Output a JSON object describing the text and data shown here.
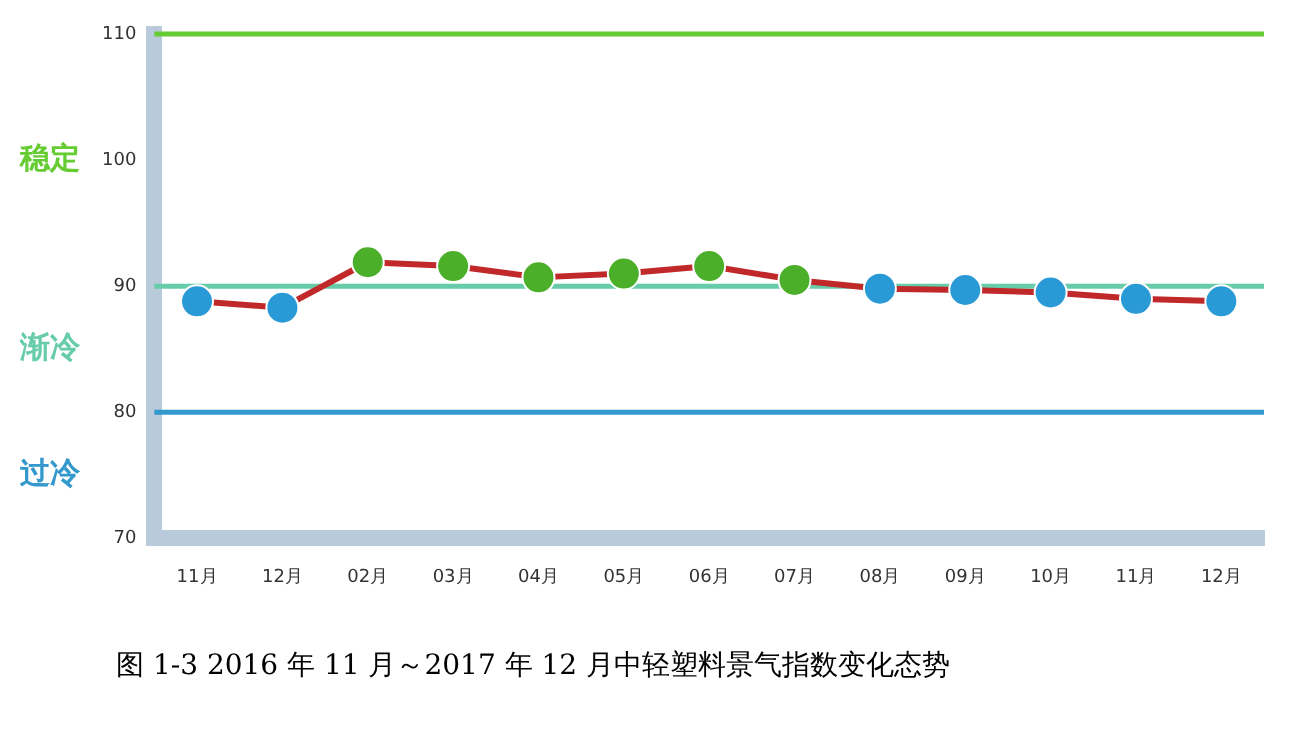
{
  "chart_data": {
    "type": "line",
    "categories": [
      "11月",
      "12月",
      "02月",
      "03月",
      "04月",
      "05月",
      "06月",
      "07月",
      "08月",
      "09月",
      "10月",
      "11月",
      "12月"
    ],
    "series": [
      {
        "color": "#c0282a",
        "values": [
          88.8,
          88.3,
          91.9,
          91.6,
          90.7,
          91.0,
          91.6,
          90.5,
          89.8,
          89.7,
          89.5,
          89.0,
          88.8
        ],
        "colors": [
          "#2a9ad6",
          "#2a9ad6",
          "#4caf2a",
          "#4caf2a",
          "#4caf2a",
          "#4caf2a",
          "#4caf2a",
          "#4caf2a",
          "#2a9ad6",
          "#2a9ad6",
          "#2a9ad6",
          "#2a9ad6",
          "#2a9ad6"
        ]
      }
    ],
    "ylim": [
      70,
      110
    ],
    "yticks": [
      70,
      80,
      90,
      100,
      110
    ],
    "grid": false,
    "legend": false,
    "marker": "circle",
    "line_style": "solid",
    "ref_lines": [
      {
        "axis": "y",
        "value": 110,
        "color": "#66cc33"
      },
      {
        "axis": "y",
        "value": 90,
        "color": "#66ccaa"
      },
      {
        "axis": "y",
        "value": 80,
        "color": "#3399cc"
      }
    ],
    "annotations": [
      "稳定",
      "渐冷",
      "过冷",
      "图 1-3   2016 年 11 月～2017 年 12 月中轻塑料景气指数变化态势"
    ]
  }
}
